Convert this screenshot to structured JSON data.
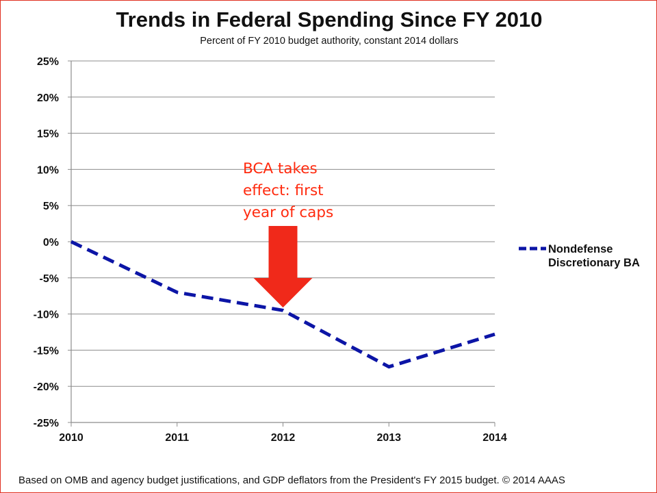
{
  "chart_data": {
    "type": "line",
    "title": "Trends in Federal Spending Since FY 2010",
    "subtitle": "Percent of FY 2010 budget authority, constant 2014 dollars",
    "x": [
      2010,
      2011,
      2012,
      2013,
      2014
    ],
    "x_tick_labels": [
      "2010",
      "2011",
      "2012",
      "2013",
      "2014"
    ],
    "y_tick_labels": [
      "25%",
      "20%",
      "15%",
      "10%",
      "5%",
      "0%",
      "-5%",
      "-10%",
      "-15%",
      "-20%",
      "-25%"
    ],
    "ylim": [
      -25,
      25
    ],
    "y_ticks": [
      25,
      20,
      15,
      10,
      5,
      0,
      -5,
      -10,
      -15,
      -20,
      -25
    ],
    "grid": true,
    "legend_position": "right",
    "series": [
      {
        "name": "Nondefense Discretionary BA",
        "legend_lines": [
          "Nondefense",
          "Discretionary BA"
        ],
        "values": [
          0,
          -7,
          -9.5,
          -17.3,
          -12.8
        ],
        "color": "#0c15a6",
        "style": "dashed"
      }
    ],
    "annotation": {
      "lines": [
        "BCA takes",
        "effect: first",
        "year of caps"
      ],
      "x": 2012,
      "color": "#ff2a0e",
      "arrow_color": "#f0291a"
    }
  },
  "footer": "Based on OMB and agency budget justifications, and GDP deflators from the President's FY 2015 budget. © 2014 AAAS"
}
